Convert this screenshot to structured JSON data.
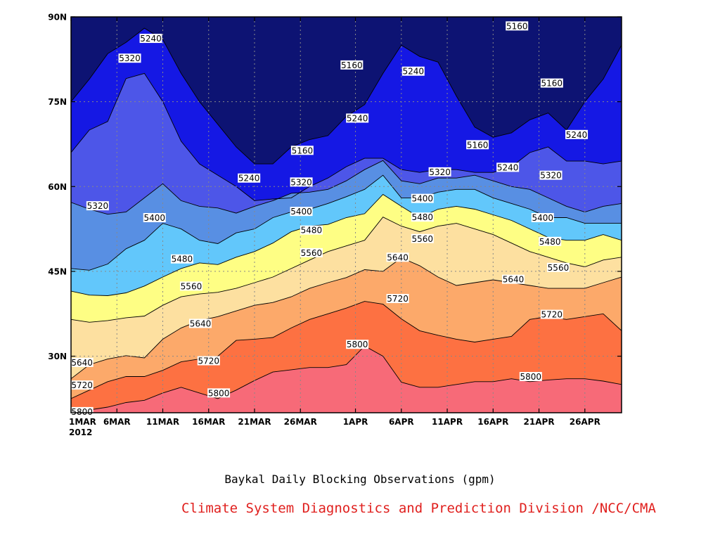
{
  "chart_data": {
    "type": "heatmap",
    "title": "Baykal Daily Blocking Observations (gpm)",
    "xlabel": "",
    "ylabel": "",
    "x_tick_labels": [
      "1MAR",
      "6MAR",
      "11MAR",
      "16MAR",
      "21MAR",
      "26MAR",
      "1APR",
      "6APR",
      "11APR",
      "16APR",
      "21APR",
      "26APR"
    ],
    "x_tick_sublabel": "2012",
    "x_tick_days": [
      0,
      5,
      10,
      15,
      20,
      25,
      31,
      36,
      41,
      46,
      51,
      56
    ],
    "xlim_days": [
      0,
      60
    ],
    "y_tick_labels": [
      "30N",
      "45N",
      "60N",
      "75N",
      "90N"
    ],
    "y_tick_values": [
      30,
      45,
      60,
      75,
      90
    ],
    "ylim": [
      20,
      90
    ],
    "grid": true,
    "contour_levels": [
      5160,
      5240,
      5320,
      5400,
      5480,
      5560,
      5640,
      5720,
      5800
    ],
    "band_colors": [
      "#0d1373",
      "#1518e4",
      "#4d56e8",
      "#588fe3",
      "#62c7fb",
      "#fefe84",
      "#fde0a0",
      "#fca96a",
      "#fd7142",
      "#f76a78"
    ],
    "contour_latitudes": {
      "x_days": [
        0,
        2,
        4,
        6,
        8,
        10,
        12,
        14,
        16,
        18,
        20,
        22,
        24,
        26,
        28,
        30,
        32,
        34,
        36,
        38,
        40,
        42,
        44,
        46,
        48,
        50,
        52,
        54,
        56,
        58,
        60
      ],
      "lines": [
        {
          "level": 5800,
          "lat": [
            20,
            20.5,
            21,
            21.8,
            22.2,
            23.5,
            24.5,
            23.5,
            22.5,
            24,
            25.7,
            27.2,
            27.6,
            28,
            28,
            28.5,
            31.8,
            30,
            25.4,
            24.5,
            24.5,
            25,
            25.5,
            25.5,
            26,
            25.5,
            25.8,
            26,
            26,
            25.6,
            25
          ]
        },
        {
          "level": 5720,
          "lat": [
            22.5,
            24,
            25.5,
            26.4,
            26.4,
            27.5,
            29,
            29.5,
            30,
            32.8,
            33,
            33.3,
            35,
            36.5,
            37.5,
            38.5,
            39.7,
            39.2,
            36.6,
            34.5,
            33.7,
            33,
            32.5,
            33,
            33.5,
            36.5,
            37,
            36.5,
            37,
            37.5,
            34.5
          ]
        },
        {
          "level": 5640,
          "lat": [
            26,
            28.5,
            29.5,
            30.1,
            29.7,
            33,
            35,
            36.3,
            37,
            38,
            39,
            39.5,
            40.5,
            42,
            43,
            43.9,
            45.3,
            45,
            47.4,
            46,
            44,
            42.5,
            43,
            43.5,
            43,
            42.5,
            42,
            42,
            42,
            43,
            44
          ]
        },
        {
          "level": 5560,
          "lat": [
            36.5,
            36,
            36.3,
            36.8,
            37.1,
            39,
            40.5,
            41,
            41.3,
            42,
            43,
            44,
            45.5,
            47,
            48.5,
            49.5,
            50.5,
            54.6,
            53,
            52,
            53,
            53.5,
            52.5,
            51.5,
            50,
            48.5,
            47.5,
            46.5,
            45.8,
            47,
            47.5
          ]
        },
        {
          "level": 5480,
          "lat": [
            41.5,
            40.8,
            40.7,
            41.2,
            42.4,
            44,
            45.5,
            46.5,
            46.2,
            47.5,
            48.5,
            50,
            52,
            53,
            53.3,
            54.5,
            55.2,
            58.6,
            56.5,
            54.5,
            56,
            56.5,
            56,
            55,
            54,
            52.5,
            51,
            50.5,
            50.5,
            51.5,
            50.5
          ]
        },
        {
          "level": 5400,
          "lat": [
            45.5,
            45.2,
            46.3,
            49,
            50.5,
            53.5,
            52.5,
            50.5,
            49.9,
            51.8,
            52.5,
            54.5,
            55.5,
            56,
            57,
            58.2,
            59.5,
            62,
            58,
            58,
            59,
            59.5,
            59.5,
            58,
            57,
            56,
            54.5,
            54.5,
            53.5,
            53.5,
            53.5
          ]
        },
        {
          "level": 5320,
          "lat": [
            57.2,
            56,
            55.1,
            55.5,
            58,
            60.5,
            57.5,
            56.5,
            56.2,
            55.3,
            56.5,
            57.5,
            58.8,
            59,
            59.5,
            61,
            63,
            64.6,
            61,
            60.5,
            61.5,
            61.5,
            62,
            61,
            60,
            59.5,
            58,
            56.5,
            55.5,
            56.5,
            57
          ]
        },
        {
          "level": 5240,
          "lat": [
            66,
            70,
            71.5,
            79.1,
            80,
            75,
            68,
            64,
            62,
            60,
            57.5,
            57.8,
            58,
            60,
            61.5,
            63.5,
            65,
            65,
            63,
            62.5,
            63,
            63,
            62.5,
            62.5,
            63.5,
            66,
            67,
            64.5,
            64.5,
            64,
            64.5
          ]
        },
        {
          "level": 5160,
          "lat": [
            75,
            79,
            83.5,
            85.5,
            88,
            86,
            80,
            75,
            71,
            67,
            64,
            64,
            67,
            68.3,
            69,
            72.4,
            74.5,
            80,
            85,
            83,
            82,
            76,
            70.5,
            68.7,
            69.5,
            71.8,
            73,
            70,
            75,
            79,
            85
          ]
        }
      ]
    },
    "contour_labels": [
      {
        "text": "5240",
        "x": 8.7,
        "y": 86.2
      },
      {
        "text": "5320",
        "x": 6.4,
        "y": 82.7
      },
      {
        "text": "5160",
        "x": 30.6,
        "y": 81.5
      },
      {
        "text": "5240",
        "x": 37.3,
        "y": 80.4
      },
      {
        "text": "5160",
        "x": 48.6,
        "y": 88.4
      },
      {
        "text": "5160",
        "x": 52.4,
        "y": 78.3
      },
      {
        "text": "5240",
        "x": 31.2,
        "y": 72.1
      },
      {
        "text": "5240",
        "x": 55.1,
        "y": 69.2
      },
      {
        "text": "5160",
        "x": 25.2,
        "y": 66.4
      },
      {
        "text": "5160",
        "x": 44.3,
        "y": 67.4
      },
      {
        "text": "5240",
        "x": 19.4,
        "y": 61.5
      },
      {
        "text": "5320",
        "x": 25.1,
        "y": 60.8
      },
      {
        "text": "5320",
        "x": 40.2,
        "y": 62.6
      },
      {
        "text": "5240",
        "x": 47.6,
        "y": 63.4
      },
      {
        "text": "5320",
        "x": 52.3,
        "y": 62.0
      },
      {
        "text": "5320",
        "x": 2.9,
        "y": 56.6
      },
      {
        "text": "5400",
        "x": 9.1,
        "y": 54.5
      },
      {
        "text": "5400",
        "x": 25.1,
        "y": 55.6
      },
      {
        "text": "5400",
        "x": 38.3,
        "y": 57.9
      },
      {
        "text": "5480",
        "x": 26.2,
        "y": 52.3
      },
      {
        "text": "5480",
        "x": 38.3,
        "y": 54.6
      },
      {
        "text": "5400",
        "x": 51.4,
        "y": 54.5
      },
      {
        "text": "5560",
        "x": 26.2,
        "y": 48.3
      },
      {
        "text": "5560",
        "x": 38.3,
        "y": 50.8
      },
      {
        "text": "5480",
        "x": 12.1,
        "y": 47.2
      },
      {
        "text": "5480",
        "x": 52.2,
        "y": 50.3
      },
      {
        "text": "5640",
        "x": 35.6,
        "y": 47.5
      },
      {
        "text": "5560",
        "x": 53.1,
        "y": 45.7
      },
      {
        "text": "5560",
        "x": 13.1,
        "y": 42.4
      },
      {
        "text": "5640",
        "x": 48.2,
        "y": 43.6
      },
      {
        "text": "5720",
        "x": 35.6,
        "y": 40.2
      },
      {
        "text": "5720",
        "x": 52.4,
        "y": 37.4
      },
      {
        "text": "5640",
        "x": 14.1,
        "y": 35.8
      },
      {
        "text": "5800",
        "x": 31.2,
        "y": 32.1
      },
      {
        "text": "5640",
        "x": 1.2,
        "y": 28.9
      },
      {
        "text": "5720",
        "x": 15.0,
        "y": 29.2
      },
      {
        "text": "5720",
        "x": 1.2,
        "y": 24.9
      },
      {
        "text": "5800",
        "x": 16.1,
        "y": 23.5
      },
      {
        "text": "5800",
        "x": 50.1,
        "y": 26.4
      },
      {
        "text": "5800",
        "x": 1.2,
        "y": 20.2
      }
    ]
  },
  "footer": {
    "credit": "Climate System Diagnostics and Prediction Division /NCC/CMA"
  }
}
